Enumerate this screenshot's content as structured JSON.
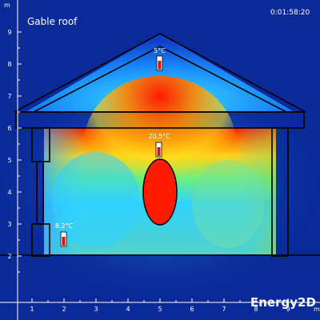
{
  "title": "Gable roof",
  "clock": "0:01:58:20",
  "logo": "Energy2D",
  "axis_unit": "m",
  "x_ticks": [
    "1",
    "2",
    "3",
    "4",
    "5",
    "6",
    "7",
    "8",
    "9"
  ],
  "y_ticks": [
    "2",
    "3",
    "4",
    "5",
    "6",
    "7",
    "8",
    "9"
  ],
  "sensors": [
    {
      "name": "attic",
      "label": "5°C"
    },
    {
      "name": "ceiling",
      "label": "20.5°C"
    },
    {
      "name": "floor",
      "label": "8.2°C"
    }
  ],
  "colors": {
    "background": "#0a2a9a",
    "hot": "#ff1a00",
    "warm": "#ffd21a",
    "cool": "#2fd2ff",
    "outline": "#000000"
  }
}
